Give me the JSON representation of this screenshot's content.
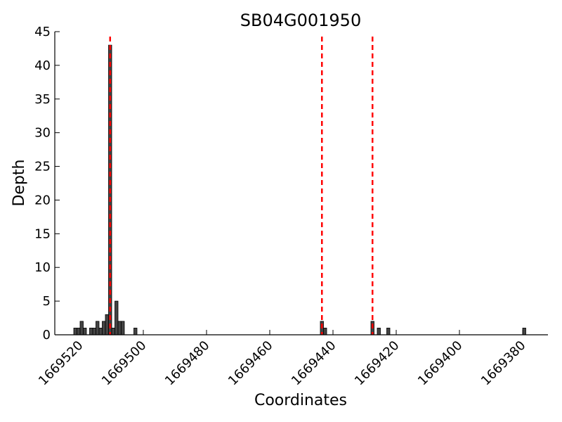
{
  "chart_data": {
    "type": "bar",
    "title": "SB04G001950",
    "xlabel": "Coordinates",
    "ylabel": "Depth",
    "xlim": [
      1669528,
      1669372
    ],
    "x_inverted": true,
    "ylim": [
      0,
      45
    ],
    "yticks": [
      0,
      5,
      10,
      15,
      20,
      25,
      30,
      35,
      40,
      45
    ],
    "xticks": [
      1669520,
      1669500,
      1669480,
      1669460,
      1669440,
      1669420,
      1669400,
      1669380
    ],
    "ytick_labels": [
      "0",
      "5",
      "10",
      "15",
      "20",
      "25",
      "30",
      "35",
      "40",
      "45"
    ],
    "xtick_labels": [
      "1669520",
      "1669500",
      "1669480",
      "1669460",
      "1669440",
      "1669420",
      "1669400",
      "1669380"
    ],
    "bar_color": "#444444",
    "bar_edge_color": "#000000",
    "bars": [
      {
        "x": 1669522,
        "y": 1
      },
      {
        "x": 1669521,
        "y": 1
      },
      {
        "x": 1669520,
        "y": 2
      },
      {
        "x": 1669519,
        "y": 1
      },
      {
        "x": 1669517,
        "y": 1
      },
      {
        "x": 1669516,
        "y": 1
      },
      {
        "x": 1669515,
        "y": 2
      },
      {
        "x": 1669514,
        "y": 1
      },
      {
        "x": 1669513,
        "y": 2
      },
      {
        "x": 1669512,
        "y": 3
      },
      {
        "x": 1669511,
        "y": 43
      },
      {
        "x": 1669510,
        "y": 1
      },
      {
        "x": 1669509,
        "y": 5
      },
      {
        "x": 1669508,
        "y": 2
      },
      {
        "x": 1669507,
        "y": 2
      },
      {
        "x": 1669503,
        "y": 1
      },
      {
        "x": 1669444,
        "y": 2
      },
      {
        "x": 1669443,
        "y": 1
      },
      {
        "x": 1669428,
        "y": 2
      },
      {
        "x": 1669426,
        "y": 1
      },
      {
        "x": 1669423,
        "y": 1
      },
      {
        "x": 1669380,
        "y": 1
      }
    ],
    "vlines": [
      {
        "x": 1669511,
        "color": "#ff0000",
        "style": "dashed"
      },
      {
        "x": 1669444,
        "color": "#ff0000",
        "style": "dashed"
      },
      {
        "x": 1669428,
        "color": "#ff0000",
        "style": "dashed"
      }
    ]
  }
}
